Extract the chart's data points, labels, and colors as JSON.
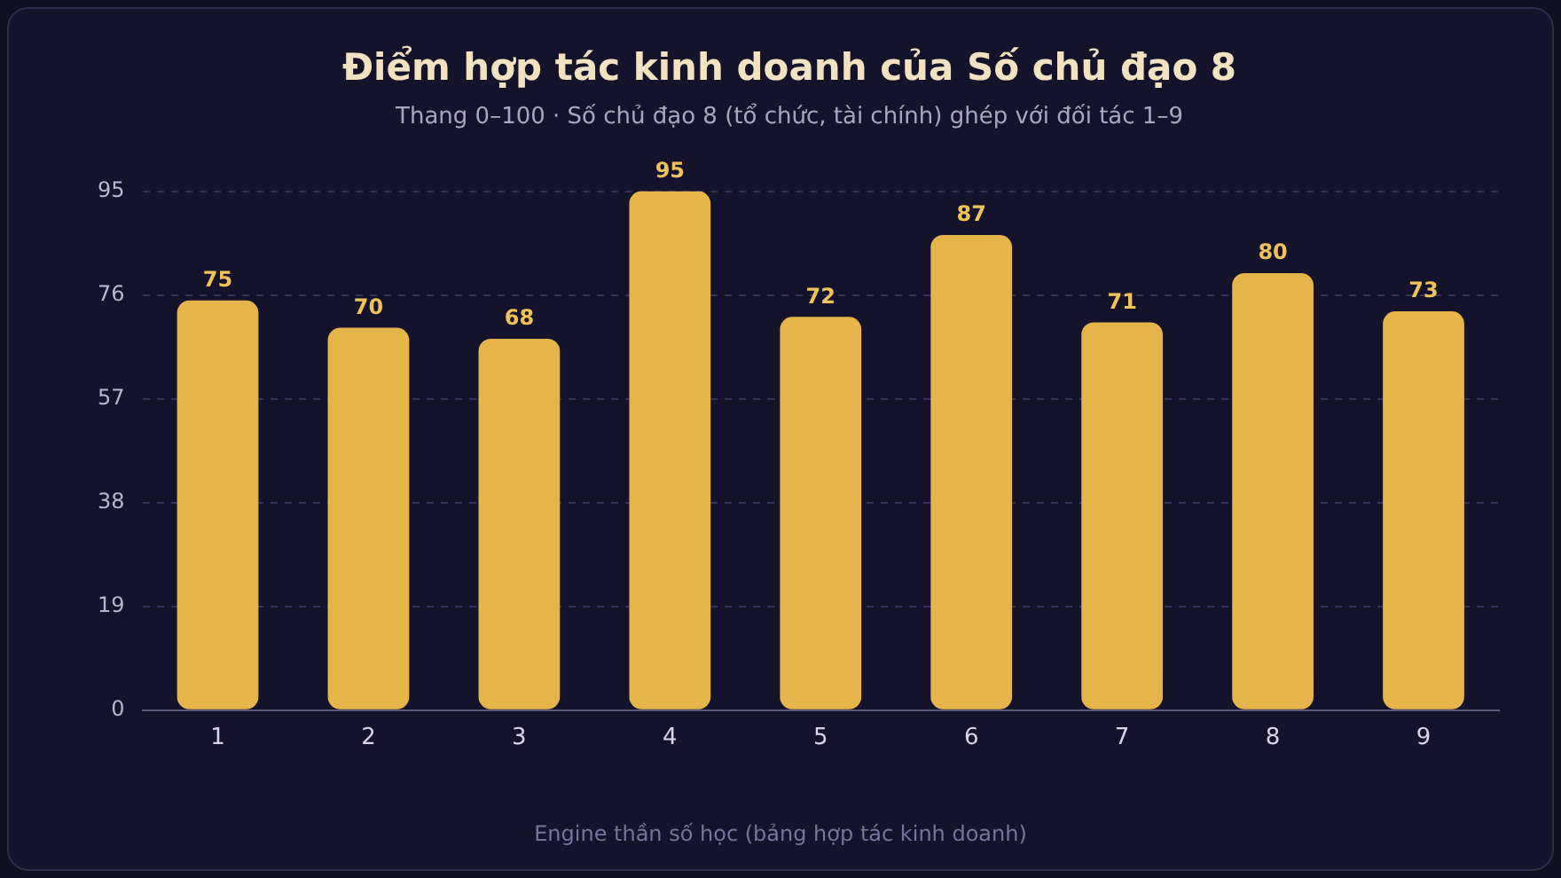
{
  "chart_data": {
    "type": "bar",
    "title": "Điểm hợp tác kinh doanh của Số chủ đạo 8",
    "subtitle": "Thang 0–100 · Số chủ đạo 8 (tổ chức, tài chính) ghép với đối tác 1–9",
    "categories": [
      "1",
      "2",
      "3",
      "4",
      "5",
      "6",
      "7",
      "8",
      "9"
    ],
    "values": [
      75,
      70,
      68,
      95,
      72,
      87,
      71,
      80,
      73
    ],
    "color": "#e5b44b",
    "ylim": [
      0,
      95
    ],
    "yticks": [
      0,
      19,
      38,
      57,
      76,
      95
    ],
    "grid": "y",
    "data_labels": true,
    "annotations": [
      "Engine thần số học (bảng hợp tác kinh doanh)"
    ]
  }
}
